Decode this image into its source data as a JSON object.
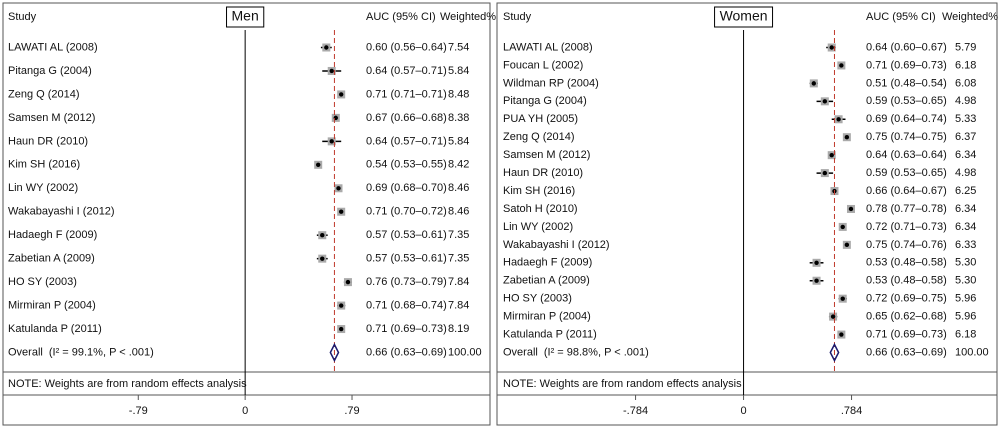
{
  "chart_data": [
    {
      "type": "forest",
      "title": "Men",
      "study_header": "Study",
      "value_header": "AUC (95% CI)",
      "weight_header": "Weighted%",
      "categories": [
        "LAWATI AL (2008)",
        "Pitanga G (2004)",
        "Zeng Q (2014)",
        "Samsen M (2012)",
        "Haun DR (2010)",
        "Kim SH (2016)",
        "Lin WY (2002)",
        "Wakabayashi I (2012)",
        "Hadaegh F (2009)",
        "Zabetian A (2009)",
        "HO SY (2003)",
        "Mirmiran P (2004)",
        "Katulanda P (2011)"
      ],
      "values": [
        0.6,
        0.64,
        0.71,
        0.67,
        0.64,
        0.54,
        0.69,
        0.71,
        0.57,
        0.57,
        0.76,
        0.71,
        0.71
      ],
      "ci_low": [
        0.56,
        0.57,
        0.71,
        0.66,
        0.57,
        0.53,
        0.68,
        0.7,
        0.53,
        0.53,
        0.73,
        0.68,
        0.69
      ],
      "ci_high": [
        0.64,
        0.71,
        0.71,
        0.68,
        0.71,
        0.55,
        0.7,
        0.72,
        0.61,
        0.61,
        0.79,
        0.74,
        0.73
      ],
      "value_labels": [
        "0.60 (0.56–0.64)",
        "0.64 (0.57–0.71)",
        "0.71 (0.71–0.71)",
        "0.67 (0.66–0.68)",
        "0.64 (0.57–0.71)",
        "0.54 (0.53–0.55)",
        "0.69 (0.68–0.70)",
        "0.71 (0.70–0.72)",
        "0.57 (0.53–0.61)",
        "0.57 (0.53–0.61)",
        "0.76 (0.73–0.79)",
        "0.71 (0.68–0.74)",
        "0.71 (0.69–0.73)"
      ],
      "weights": [
        "7.54",
        "5.84",
        "8.48",
        "8.38",
        "5.84",
        "8.42",
        "8.46",
        "8.46",
        "7.35",
        "7.35",
        "7.84",
        "7.84",
        "8.19"
      ],
      "overall": {
        "label": "Overall",
        "heterogeneity": "(I² = 99.1%, P < .001)",
        "value": 0.66,
        "ci_low": 0.63,
        "ci_high": 0.69,
        "value_label": "0.66 (0.63–0.69)",
        "weight": "100.00"
      },
      "note": "NOTE: Weights are from random effects analysis",
      "xlim": [
        -1.79,
        1.81
      ],
      "xticks": [
        {
          "value": -0.79,
          "label": "-.79"
        },
        0,
        {
          "value": 0.79,
          "label": ".79"
        }
      ],
      "point_color": "#000000",
      "diamond_color": "#1a1a6e",
      "ref_color": "#c0392b"
    },
    {
      "type": "forest",
      "title": "Women",
      "study_header": "Study",
      "value_header": "AUC (95% CI)",
      "weight_header": "Weighted%",
      "categories": [
        "LAWATI AL (2008)",
        "Foucan L (2002)",
        "Wildman RP (2004)",
        "Pitanga G (2004)",
        "PUA YH (2005)",
        "Zeng Q (2014)",
        "Samsen M (2012)",
        "Haun DR (2010)",
        "Kim SH (2016)",
        "Satoh H (2010)",
        "Lin WY (2002)",
        "Wakabayashi I (2012)",
        "Hadaegh F (2009)",
        "Zabetian A (2009)",
        "HO SY (2003)",
        "Mirmiran P (2004)",
        "Katulanda P (2011)"
      ],
      "values": [
        0.64,
        0.71,
        0.51,
        0.59,
        0.69,
        0.75,
        0.64,
        0.59,
        0.66,
        0.78,
        0.72,
        0.75,
        0.53,
        0.53,
        0.72,
        0.65,
        0.71
      ],
      "ci_low": [
        0.6,
        0.69,
        0.48,
        0.53,
        0.64,
        0.74,
        0.63,
        0.53,
        0.64,
        0.77,
        0.71,
        0.74,
        0.48,
        0.48,
        0.69,
        0.62,
        0.69
      ],
      "ci_high": [
        0.67,
        0.73,
        0.54,
        0.65,
        0.74,
        0.75,
        0.64,
        0.65,
        0.67,
        0.78,
        0.73,
        0.76,
        0.58,
        0.58,
        0.75,
        0.68,
        0.73
      ],
      "value_labels": [
        "0.64 (0.60–0.67)",
        "0.71 (0.69–0.73)",
        "0.51 (0.48–0.54)",
        "0.59 (0.53–0.65)",
        "0.69 (0.64–0.74)",
        "0.75 (0.74–0.75)",
        "0.64 (0.63–0.64)",
        "0.59 (0.53–0.65)",
        "0.66 (0.64–0.67)",
        "0.78 (0.77–0.78)",
        "0.72 (0.71–0.73)",
        "0.75 (0.74–0.76)",
        "0.53 (0.48–0.58)",
        "0.53 (0.48–0.58)",
        "0.72 (0.69–0.75)",
        "0.65 (0.62–0.68)",
        "0.71 (0.69–0.73)"
      ],
      "weights": [
        "5.79",
        "6.18",
        "6.08",
        "4.98",
        "5.33",
        "6.37",
        "6.34",
        "4.98",
        "6.25",
        "6.34",
        "6.34",
        "6.33",
        "5.30",
        "5.30",
        "5.96",
        "5.96",
        "6.18"
      ],
      "overall": {
        "label": "Overall",
        "heterogeneity": "(I² = 98.8%, P < .001)",
        "value": 0.66,
        "ci_low": 0.63,
        "ci_high": 0.69,
        "value_label": "0.66 (0.63–0.69)",
        "weight": "100.00"
      },
      "note": "NOTE: Weights are from random effects analysis",
      "xlim": [
        -1.79,
        1.84
      ],
      "xticks": [
        {
          "value": -0.784,
          "label": "-.784"
        },
        0,
        {
          "value": 0.784,
          "label": ".784"
        }
      ],
      "point_color": "#000000",
      "diamond_color": "#1a1a6e",
      "ref_color": "#c0392b"
    }
  ]
}
